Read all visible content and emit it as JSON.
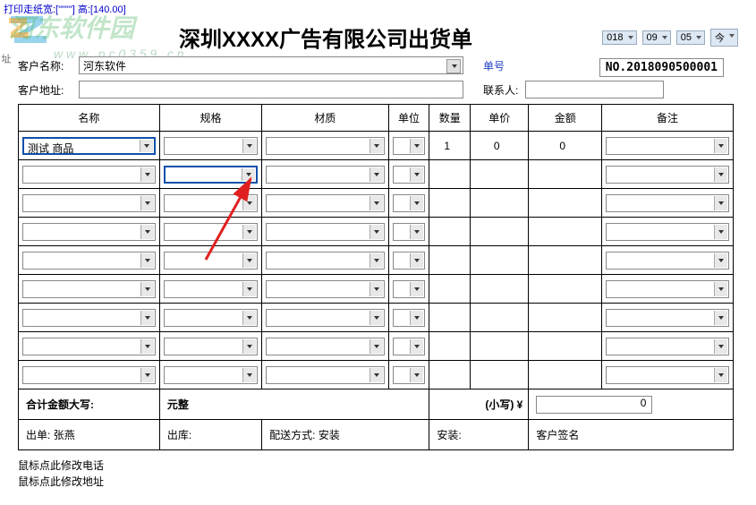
{
  "top_hint": "打印走纸宽:[\"\"\"\"] 高:[140.00]",
  "watermark": "河东软件园",
  "watermark_url": "w w w . p c 0 3 5 9 . c n",
  "title": "深圳XXXX广告有限公司出货单",
  "date": {
    "label": "单号",
    "y": "018",
    "m": "09",
    "d": "05",
    "today": "今"
  },
  "customer": {
    "name_label": "客户名称:",
    "name_value": "河东软件",
    "addr_label": "客户地址:",
    "contact_label": "联系人:"
  },
  "order_no": "NO.2018090500001",
  "sidebar": "址",
  "headers": {
    "name": "名称",
    "spec": "规格",
    "mat": "材质",
    "unit": "单位",
    "qty": "数量",
    "price": "单价",
    "amt": "金额",
    "note": "备注"
  },
  "rows": [
    {
      "name": "测试 商品",
      "qty": "1",
      "price": "0",
      "amt": "0"
    },
    {},
    {},
    {},
    {},
    {},
    {},
    {},
    {}
  ],
  "summary": {
    "label": "合计金额大写:",
    "cn": "元整",
    "small_label": "(小写) ¥",
    "total": "0"
  },
  "footer": {
    "issuer_label": "出单:",
    "issuer": "张燕",
    "out_label": "出库:",
    "ship_label": "配送方式:",
    "ship": "安装",
    "install_label": "安装:",
    "sign_label": "客户签名"
  },
  "notes": {
    "l1": "鼠标点此修改电话",
    "l2": "鼠标点此修改地址"
  },
  "colors": {
    "hint": "#0000cc",
    "border": "#000000",
    "sel_border": "#888888",
    "active": "#1050aa",
    "arrow": "#e02020"
  }
}
